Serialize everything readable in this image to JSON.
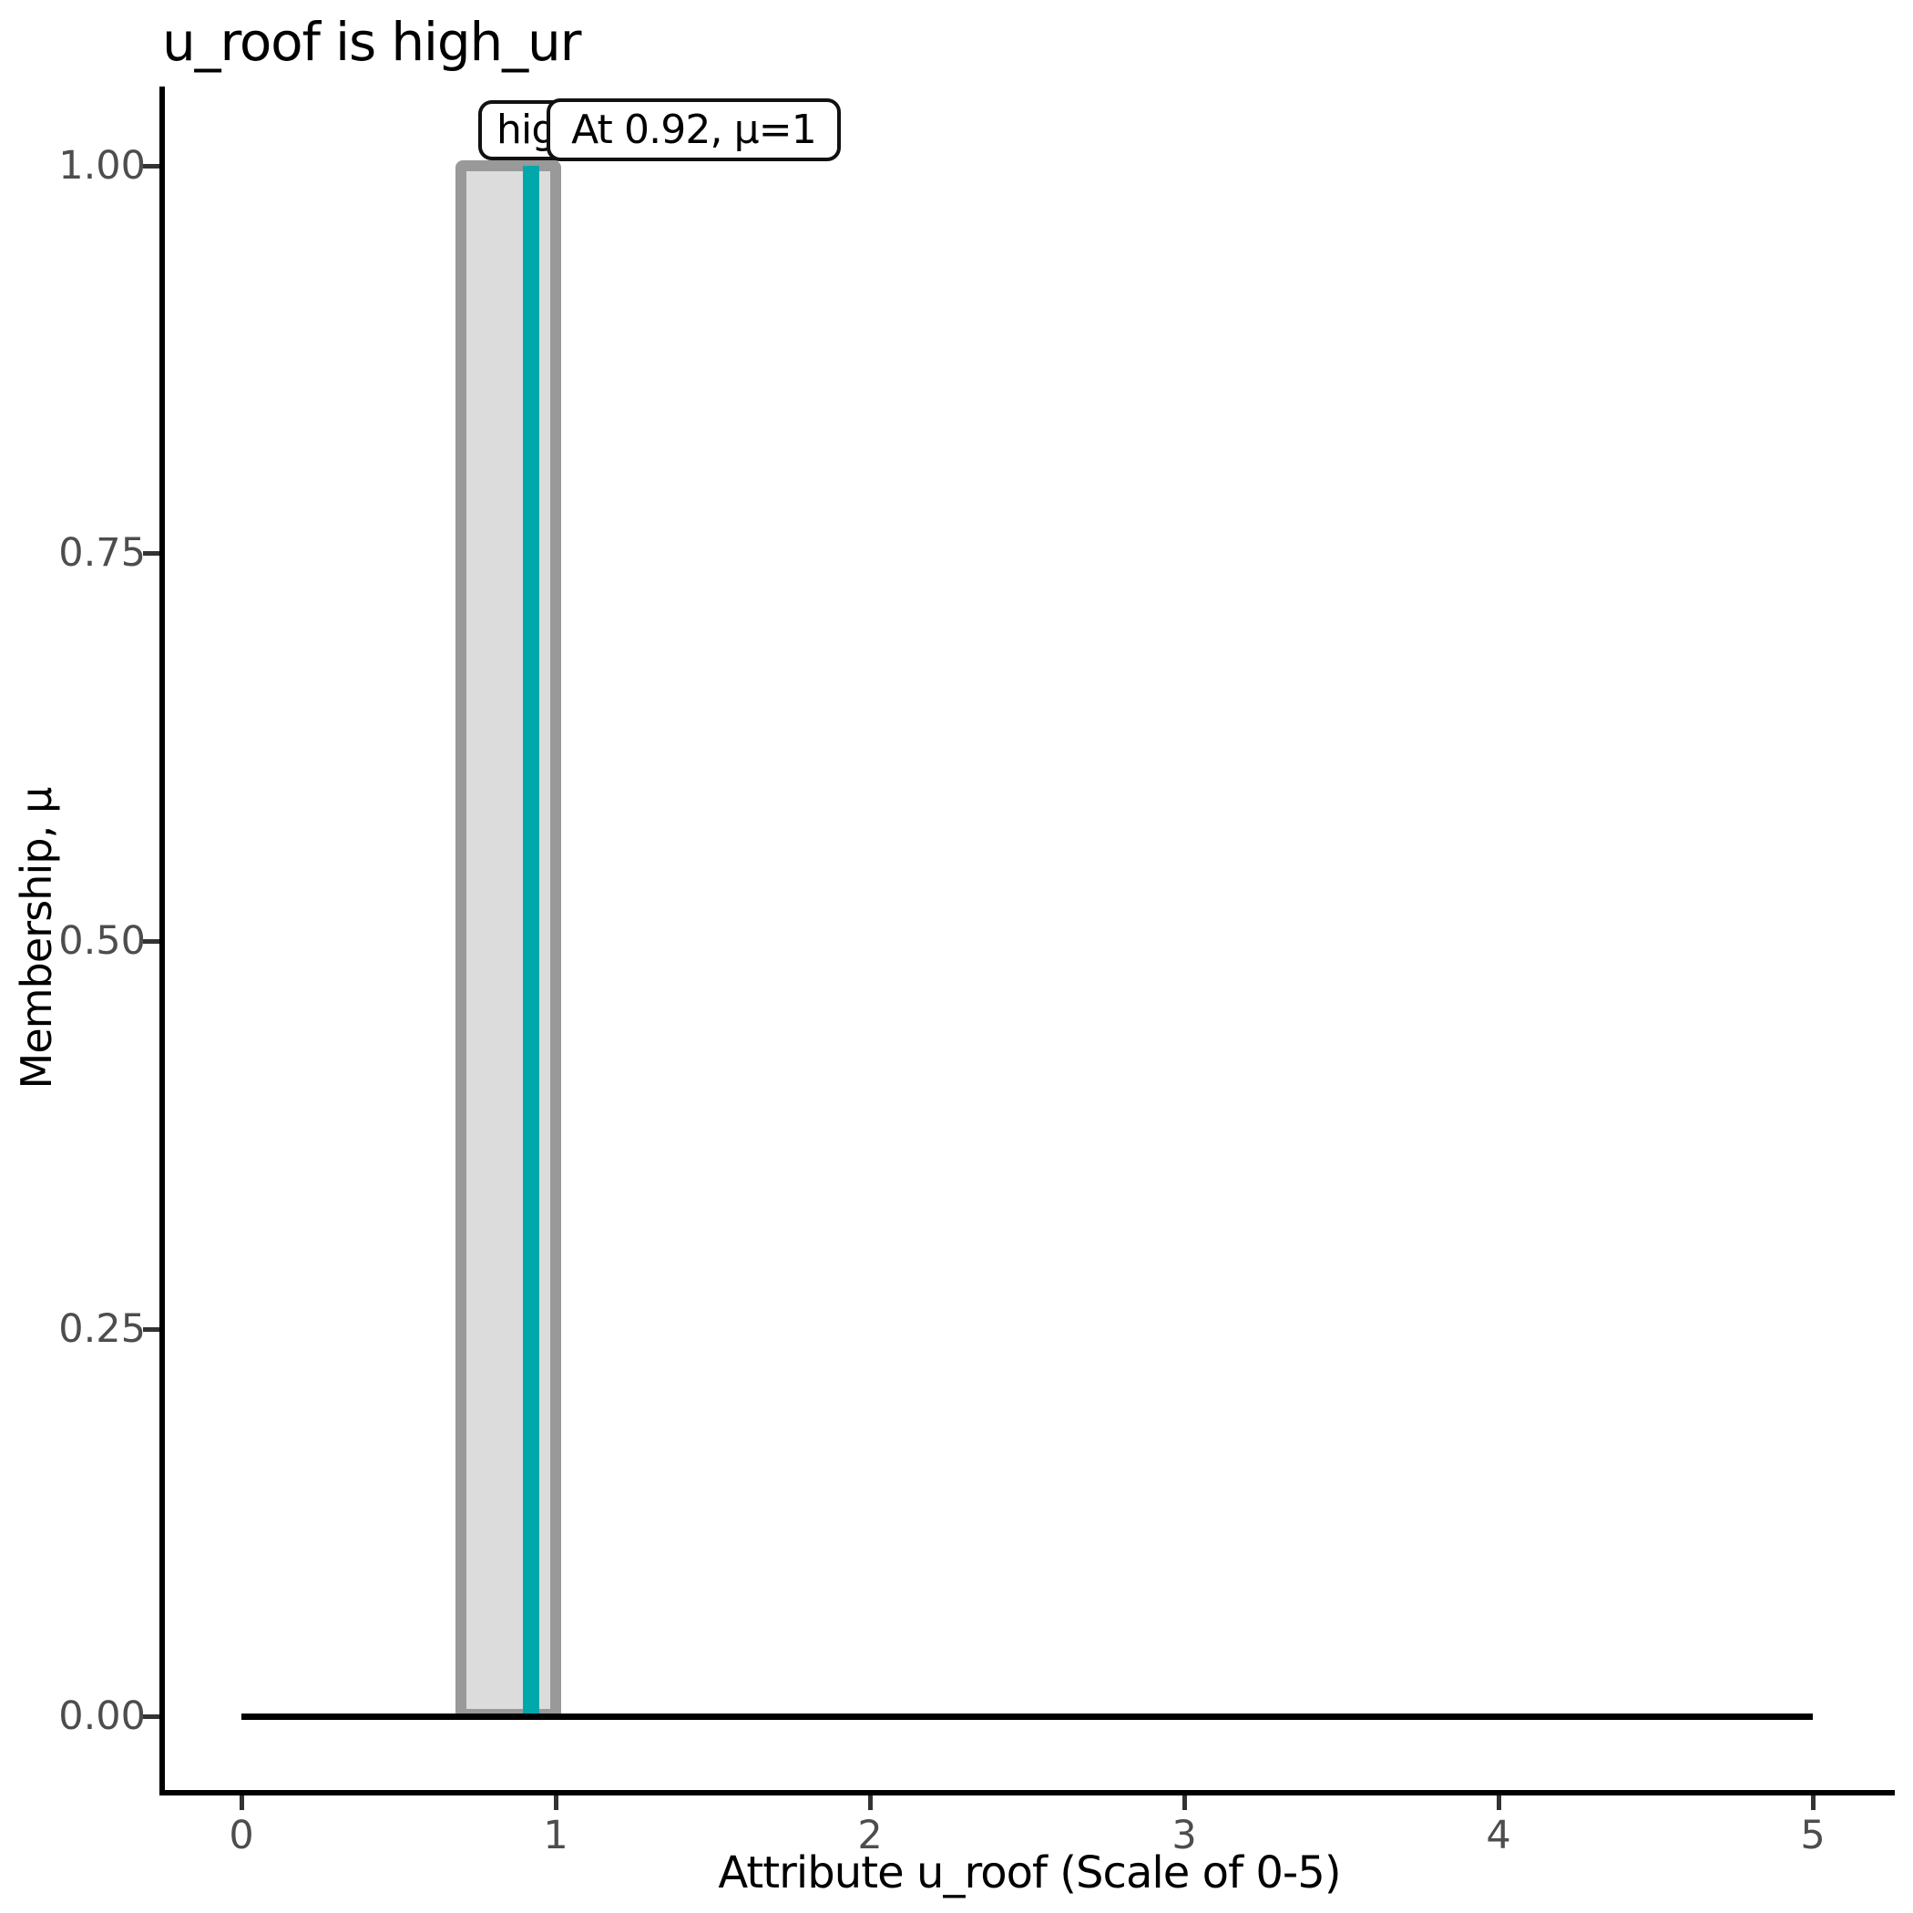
{
  "chart_data": {
    "type": "line",
    "title": "u_roof is high_ur",
    "xlabel": "Attribute u_roof (Scale of 0-5)",
    "ylabel": "Membership, μ",
    "xlim": [
      0,
      5
    ],
    "ylim": [
      0,
      1
    ],
    "grid": false,
    "legend": false,
    "x_ticks": [
      "0",
      "1",
      "2",
      "3",
      "4",
      "5"
    ],
    "y_ticks": [
      "0.00",
      "0.25",
      "0.50",
      "0.75",
      "1.00"
    ],
    "series": [
      {
        "name": "baseline",
        "description": "membership = 0 baseline across full domain",
        "color": "#000000",
        "points_x": [
          0,
          5
        ],
        "points_y": [
          0,
          0
        ]
      },
      {
        "name": "high_ur membership function",
        "description": "crisp rectangular fuzzy set, mu=1 between 0.7 and 1.0",
        "outline_color": "#999999",
        "fill_color": "#dcdcdc",
        "points_x": [
          0.7,
          0.7,
          1.0,
          1.0
        ],
        "points_y": [
          0,
          1,
          1,
          0
        ]
      },
      {
        "name": "input value line",
        "description": "vertical line at attribute value",
        "color": "#00a8ac",
        "x": 0.92,
        "mu": 1
      }
    ],
    "annotations": [
      {
        "label": "high_ur",
        "visible_portion": "hig",
        "x": 0.75,
        "y": 1.0
      },
      {
        "label": "At 0.92, μ=1",
        "x": 0.92,
        "y": 1.0
      }
    ]
  },
  "colors": {
    "background": "#ffffff",
    "axis": "#000000",
    "tick_label": "#4d4d4d",
    "mf_outline": "#999999",
    "mf_fill": "#dcdcdc",
    "value_line": "#00a8ac",
    "annotation_border": "#111111",
    "annotation_fill": "#ffffff"
  }
}
